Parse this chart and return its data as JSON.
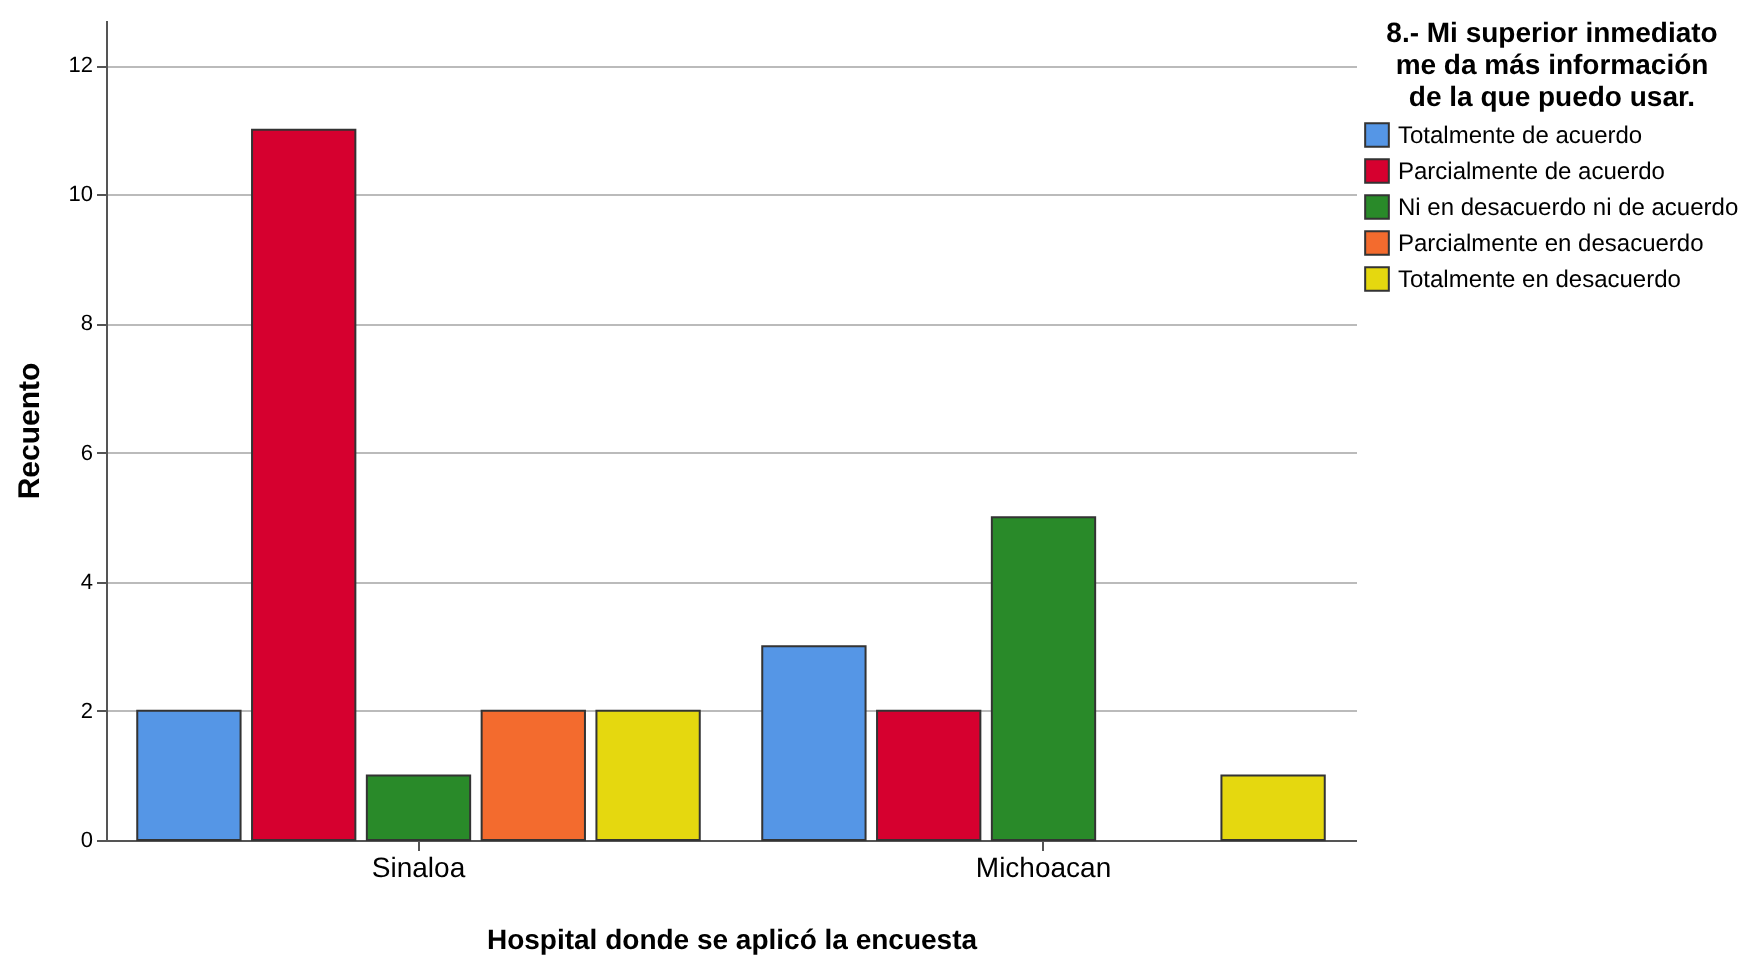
{
  "chart_data": {
    "type": "bar",
    "xlabel": "Hospital donde se aplicó la encuesta",
    "ylabel": "Recuento",
    "legend_title": "8.- Mi superior inmediato\nme da más información\nde la que puedo usar.",
    "categories": [
      "Sinaloa",
      "Michoacan"
    ],
    "series": [
      {
        "name": "Totalmente de acuerdo",
        "color": "#5596e6",
        "values": [
          2,
          3
        ]
      },
      {
        "name": "Parcialmente de acuerdo",
        "color": "#d6002f",
        "values": [
          11,
          2
        ]
      },
      {
        "name": "Ni en desacuerdo ni de acuerdo",
        "color": "#298a29",
        "values": [
          1,
          5
        ]
      },
      {
        "name": "Parcialmente en desacuerdo",
        "color": "#f36b2e",
        "values": [
          2,
          null
        ]
      },
      {
        "name": "Totalmente en desacuerdo",
        "color": "#e5d80f",
        "values": [
          2,
          1
        ]
      }
    ],
    "ylim": [
      0,
      12.7
    ],
    "yticks": [
      0,
      2,
      4,
      6,
      8,
      10,
      12
    ],
    "grid": "y",
    "legend": "top right"
  }
}
